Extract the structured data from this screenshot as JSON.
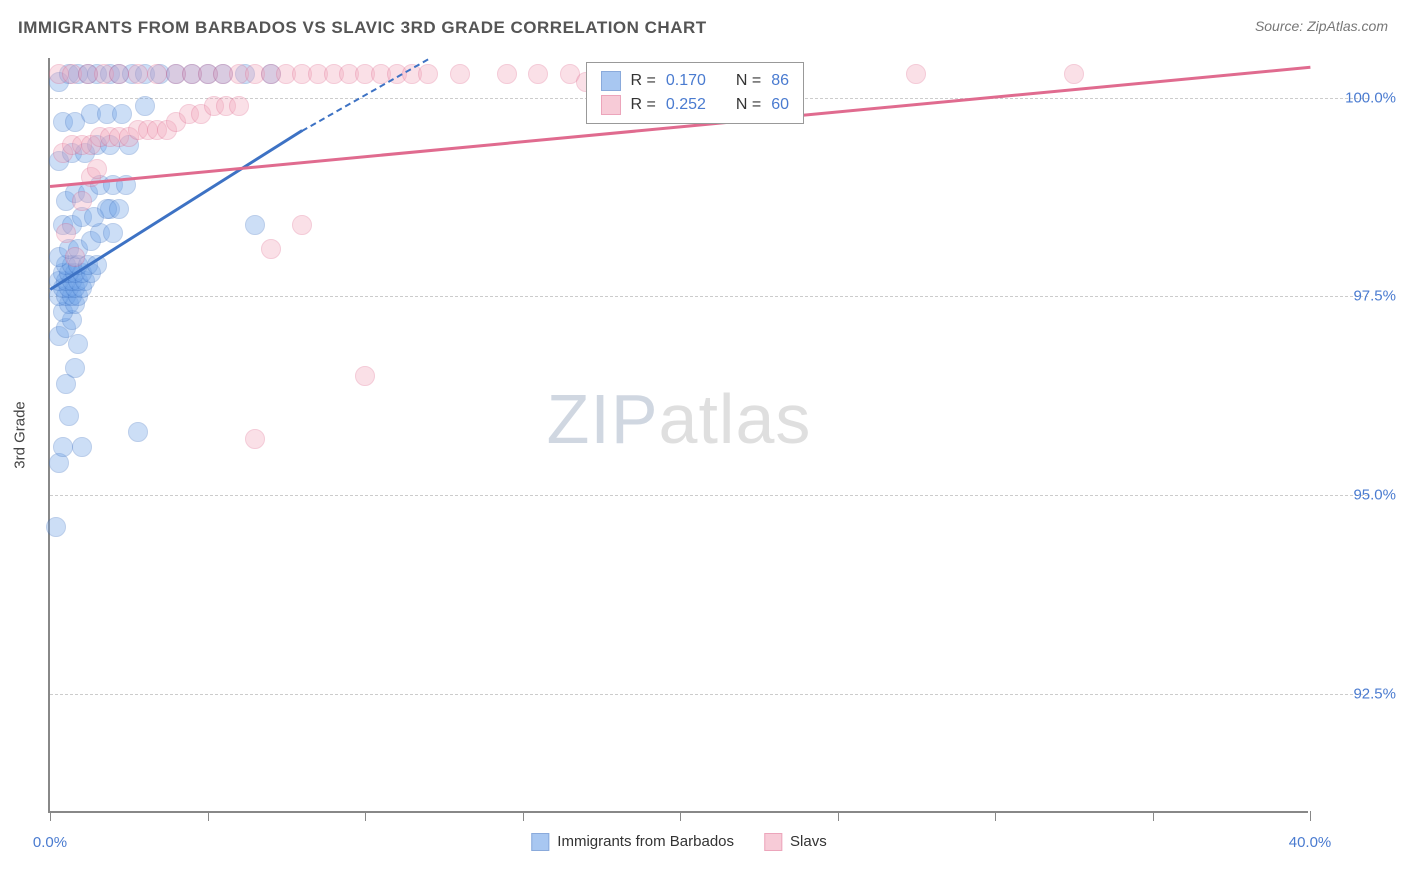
{
  "header": {
    "title": "IMMIGRANTS FROM BARBADOS VS SLAVIC 3RD GRADE CORRELATION CHART",
    "source_label": "Source:",
    "source_name": "ZipAtlas.com"
  },
  "chart": {
    "type": "scatter",
    "background_color": "#ffffff",
    "grid_color": "#cccccc",
    "axis_color": "#888888",
    "xlim": [
      0,
      40
    ],
    "ylim": [
      91,
      100.5
    ],
    "yticks": [
      {
        "v": 92.5,
        "label": "92.5%"
      },
      {
        "v": 95.0,
        "label": "95.0%"
      },
      {
        "v": 97.5,
        "label": "97.5%"
      },
      {
        "v": 100.0,
        "label": "100.0%"
      }
    ],
    "xticks_major": [
      0,
      5,
      10,
      15,
      20,
      25,
      30,
      35,
      40
    ],
    "xtick_labels": [
      {
        "v": 0,
        "label": "0.0%"
      },
      {
        "v": 40,
        "label": "40.0%"
      }
    ],
    "yaxis_title": "3rd Grade",
    "marker_radius": 10,
    "marker_opacity": 0.35,
    "series": [
      {
        "id": "barbados",
        "label": "Immigrants from Barbados",
        "color_fill": "#6fa3e8",
        "color_stroke": "#3d72c4",
        "R": "0.170",
        "N": "86",
        "trend": {
          "x1": 0,
          "y1": 97.6,
          "x2": 8.0,
          "y2": 99.6,
          "dash_to_x": 12.0,
          "dash_to_y": 100.5
        },
        "points": [
          [
            0.2,
            94.6
          ],
          [
            0.3,
            95.4
          ],
          [
            0.4,
            95.6
          ],
          [
            0.6,
            96.0
          ],
          [
            0.5,
            96.4
          ],
          [
            0.8,
            96.6
          ],
          [
            0.3,
            97.0
          ],
          [
            0.5,
            97.1
          ],
          [
            0.7,
            97.2
          ],
          [
            0.4,
            97.3
          ],
          [
            0.6,
            97.4
          ],
          [
            0.8,
            97.4
          ],
          [
            0.3,
            97.5
          ],
          [
            0.5,
            97.5
          ],
          [
            0.7,
            97.5
          ],
          [
            0.9,
            97.5
          ],
          [
            0.4,
            97.6
          ],
          [
            0.6,
            97.6
          ],
          [
            0.8,
            97.6
          ],
          [
            1.0,
            97.6
          ],
          [
            0.3,
            97.7
          ],
          [
            0.5,
            97.7
          ],
          [
            0.7,
            97.7
          ],
          [
            0.9,
            97.7
          ],
          [
            1.1,
            97.7
          ],
          [
            0.4,
            97.8
          ],
          [
            0.6,
            97.8
          ],
          [
            0.8,
            97.8
          ],
          [
            1.0,
            97.8
          ],
          [
            1.3,
            97.8
          ],
          [
            0.5,
            97.9
          ],
          [
            0.7,
            97.9
          ],
          [
            0.9,
            97.9
          ],
          [
            1.2,
            97.9
          ],
          [
            1.5,
            97.9
          ],
          [
            1.9,
            98.6
          ],
          [
            0.3,
            98.0
          ],
          [
            0.6,
            98.1
          ],
          [
            0.9,
            98.1
          ],
          [
            1.3,
            98.2
          ],
          [
            1.6,
            98.3
          ],
          [
            2.0,
            98.3
          ],
          [
            0.4,
            98.4
          ],
          [
            0.7,
            98.4
          ],
          [
            1.0,
            98.5
          ],
          [
            1.4,
            98.5
          ],
          [
            1.8,
            98.6
          ],
          [
            2.2,
            98.6
          ],
          [
            0.5,
            98.7
          ],
          [
            0.8,
            98.8
          ],
          [
            1.2,
            98.8
          ],
          [
            1.6,
            98.9
          ],
          [
            2.0,
            98.9
          ],
          [
            2.4,
            98.9
          ],
          [
            0.3,
            99.2
          ],
          [
            0.7,
            99.3
          ],
          [
            1.1,
            99.3
          ],
          [
            1.5,
            99.4
          ],
          [
            1.9,
            99.4
          ],
          [
            2.5,
            99.4
          ],
          [
            0.4,
            99.7
          ],
          [
            0.8,
            99.7
          ],
          [
            1.3,
            99.8
          ],
          [
            1.8,
            99.8
          ],
          [
            2.3,
            99.8
          ],
          [
            3.0,
            99.9
          ],
          [
            0.3,
            100.2
          ],
          [
            0.6,
            100.3
          ],
          [
            0.9,
            100.3
          ],
          [
            1.2,
            100.3
          ],
          [
            1.5,
            100.3
          ],
          [
            1.9,
            100.3
          ],
          [
            2.2,
            100.3
          ],
          [
            2.6,
            100.3
          ],
          [
            3.0,
            100.3
          ],
          [
            3.5,
            100.3
          ],
          [
            4.0,
            100.3
          ],
          [
            4.5,
            100.3
          ],
          [
            5.0,
            100.3
          ],
          [
            5.5,
            100.3
          ],
          [
            6.2,
            100.3
          ],
          [
            7.0,
            100.3
          ],
          [
            1.0,
            95.6
          ],
          [
            2.8,
            95.8
          ],
          [
            0.9,
            96.9
          ],
          [
            6.5,
            98.4
          ]
        ]
      },
      {
        "id": "slavs",
        "label": "Slavs",
        "color_fill": "#f2a9bd",
        "color_stroke": "#e06b8f",
        "R": "0.252",
        "N": "60",
        "trend": {
          "x1": 0,
          "y1": 98.9,
          "x2": 40,
          "y2": 100.4
        },
        "points": [
          [
            0.5,
            98.3
          ],
          [
            0.8,
            98.0
          ],
          [
            1.0,
            98.7
          ],
          [
            1.3,
            99.0
          ],
          [
            1.5,
            99.1
          ],
          [
            0.4,
            99.3
          ],
          [
            0.7,
            99.4
          ],
          [
            1.0,
            99.4
          ],
          [
            1.3,
            99.4
          ],
          [
            1.6,
            99.5
          ],
          [
            1.9,
            99.5
          ],
          [
            2.2,
            99.5
          ],
          [
            2.5,
            99.5
          ],
          [
            2.8,
            99.6
          ],
          [
            3.1,
            99.6
          ],
          [
            3.4,
            99.6
          ],
          [
            3.7,
            99.6
          ],
          [
            4.0,
            99.7
          ],
          [
            4.4,
            99.8
          ],
          [
            4.8,
            99.8
          ],
          [
            5.2,
            99.9
          ],
          [
            5.6,
            99.9
          ],
          [
            6.0,
            99.9
          ],
          [
            0.3,
            100.3
          ],
          [
            0.7,
            100.3
          ],
          [
            1.2,
            100.3
          ],
          [
            1.7,
            100.3
          ],
          [
            2.2,
            100.3
          ],
          [
            2.8,
            100.3
          ],
          [
            3.4,
            100.3
          ],
          [
            4.0,
            100.3
          ],
          [
            4.5,
            100.3
          ],
          [
            5.0,
            100.3
          ],
          [
            5.5,
            100.3
          ],
          [
            6.0,
            100.3
          ],
          [
            6.5,
            100.3
          ],
          [
            7.0,
            100.3
          ],
          [
            7.5,
            100.3
          ],
          [
            8.0,
            100.3
          ],
          [
            8.5,
            100.3
          ],
          [
            9.0,
            100.3
          ],
          [
            9.5,
            100.3
          ],
          [
            10.0,
            100.3
          ],
          [
            10.5,
            100.3
          ],
          [
            11.0,
            100.3
          ],
          [
            11.5,
            100.3
          ],
          [
            12.0,
            100.3
          ],
          [
            13.0,
            100.3
          ],
          [
            14.5,
            100.3
          ],
          [
            15.5,
            100.3
          ],
          [
            16.5,
            100.3
          ],
          [
            17.0,
            100.2
          ],
          [
            20.0,
            100.3
          ],
          [
            21.0,
            100.3
          ],
          [
            27.5,
            100.3
          ],
          [
            32.5,
            100.3
          ],
          [
            7.0,
            98.1
          ],
          [
            8.0,
            98.4
          ],
          [
            10.0,
            96.5
          ],
          [
            6.5,
            95.7
          ]
        ]
      }
    ]
  },
  "legend_box": {
    "R_label": "R =",
    "N_label": "N ="
  },
  "watermark": {
    "zip": "ZIP",
    "atlas": "atlas"
  }
}
